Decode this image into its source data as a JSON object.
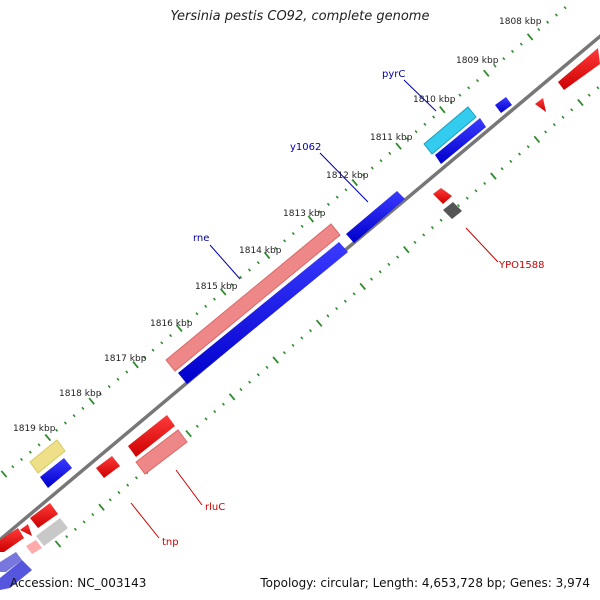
{
  "title": "Yersinia pestis CO92, complete genome",
  "accession": "Accession: NC_003143",
  "summary": "Topology: circular; Length: 4,653,728 bp; Genes: 3,974",
  "ticks": [
    "1808 kbp",
    "1809 kbp",
    "1810 kbp",
    "1811 kbp",
    "1812 kbp",
    "1813 kbp",
    "1814 kbp",
    "1815 kbp",
    "1816 kbp",
    "1817 kbp",
    "1818 kbp",
    "1819 kbp"
  ],
  "gene_labels": [
    {
      "text": "pyrC",
      "color": "#0000aa"
    },
    {
      "text": "y1062",
      "color": "#0000aa"
    },
    {
      "text": "rne",
      "color": "#0000aa"
    },
    {
      "text": "YPO1588",
      "color": "#cc0000"
    },
    {
      "text": "rluC",
      "color": "#cc0000"
    },
    {
      "text": "tnp",
      "color": "#cc0000"
    }
  ],
  "colors": {
    "backbone": "#777777",
    "tick": "#2e8b2e",
    "forward": "#0000ee",
    "reverse": "#ee0000",
    "rne": "#ee8888",
    "pyrC": "#33ccee",
    "pseudo": "#eee088",
    "grey": "#555555"
  }
}
